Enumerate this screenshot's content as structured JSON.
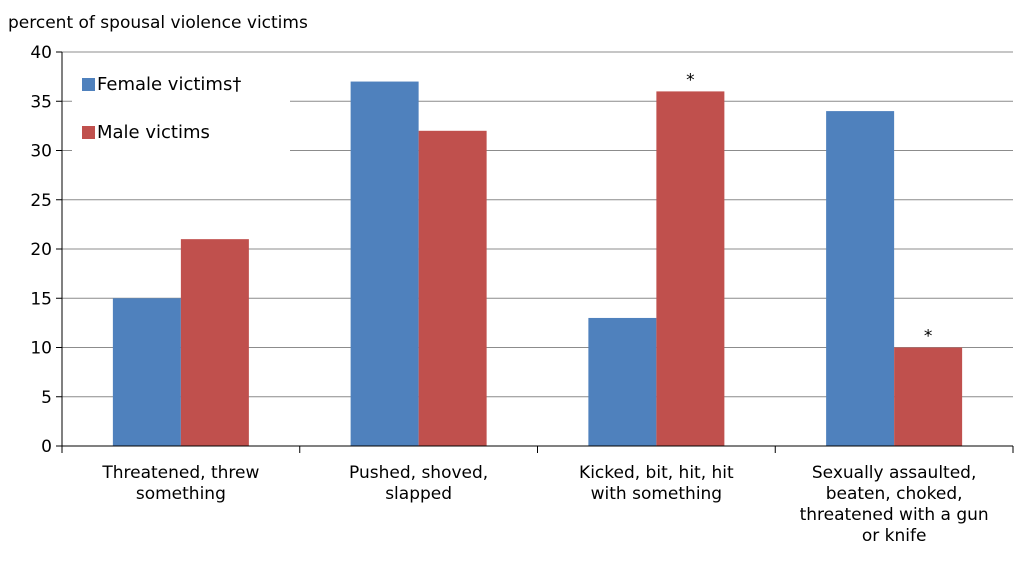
{
  "chart_data": {
    "type": "bar",
    "title": "",
    "ylabel": "percent of spousal violence victims",
    "xlabel": "",
    "ylim": [
      0,
      40
    ],
    "yticks": [
      0,
      5,
      10,
      15,
      20,
      25,
      30,
      35,
      40
    ],
    "grid": true,
    "legend_position": "top-left",
    "categories": [
      [
        "Threatened, threw",
        "something"
      ],
      [
        "Pushed, shoved,",
        "slapped"
      ],
      [
        "Kicked, bit, hit, hit",
        "with something"
      ],
      [
        "Sexually assaulted,",
        "beaten, choked,",
        "threatened with a gun",
        "or knife"
      ]
    ],
    "series": [
      {
        "name": "Female victims†",
        "color": "#4f81bd",
        "values": [
          15,
          37,
          13,
          34
        ],
        "annotations": [
          "",
          "",
          "",
          ""
        ]
      },
      {
        "name": "Male victims",
        "color": "#c0504d",
        "values": [
          21,
          32,
          36,
          10
        ],
        "annotations": [
          "",
          "",
          "*",
          "*"
        ]
      }
    ]
  }
}
